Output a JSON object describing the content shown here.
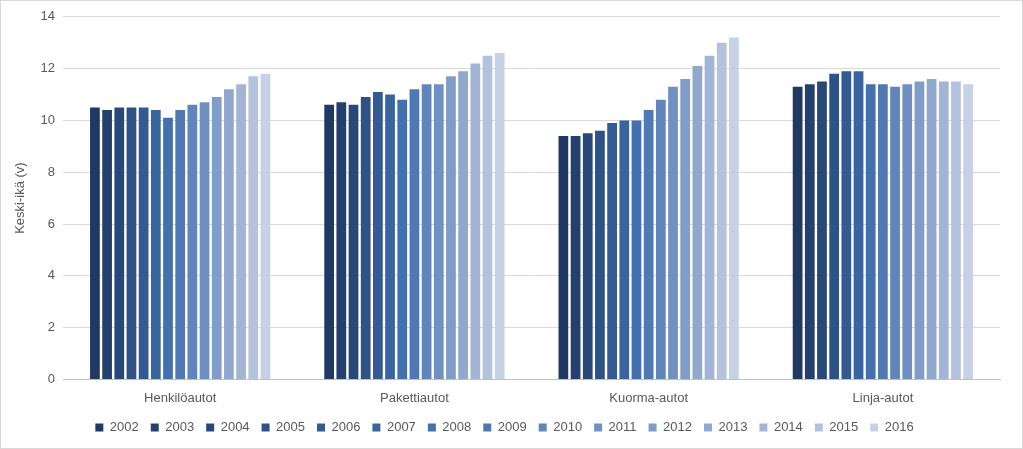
{
  "chart_data": {
    "type": "bar",
    "y_label": "Keski-ikä (v)",
    "categories": [
      "Henkilöautot",
      "Pakettiautot",
      "Kuorma-autot",
      "Linja-autot"
    ],
    "series": [
      {
        "name": "2002",
        "color": "#203864",
        "values": [
          10.5,
          10.6,
          9.4,
          11.3
        ]
      },
      {
        "name": "2003",
        "color": "#24406f",
        "values": [
          10.4,
          10.7,
          9.4,
          11.4
        ]
      },
      {
        "name": "2004",
        "color": "#29487a",
        "values": [
          10.5,
          10.6,
          9.5,
          11.5
        ]
      },
      {
        "name": "2005",
        "color": "#2e5186",
        "values": [
          10.5,
          10.9,
          9.6,
          11.8
        ]
      },
      {
        "name": "2006",
        "color": "#335a92",
        "values": [
          10.5,
          11.1,
          9.9,
          11.9
        ]
      },
      {
        "name": "2007",
        "color": "#3a64a0",
        "values": [
          10.4,
          11.0,
          10.0,
          11.9
        ]
      },
      {
        "name": "2008",
        "color": "#4470ad",
        "values": [
          10.1,
          10.8,
          10.0,
          11.4
        ]
      },
      {
        "name": "2009",
        "color": "#5079b3",
        "values": [
          10.4,
          11.2,
          10.4,
          11.4
        ]
      },
      {
        "name": "2010",
        "color": "#6185bb",
        "values": [
          10.6,
          11.4,
          10.8,
          11.3
        ]
      },
      {
        "name": "2011",
        "color": "#7090c2",
        "values": [
          10.7,
          11.4,
          11.3,
          11.4
        ]
      },
      {
        "name": "2012",
        "color": "#809cc8",
        "values": [
          10.9,
          11.7,
          11.6,
          11.5
        ]
      },
      {
        "name": "2013",
        "color": "#90a8ce",
        "values": [
          11.2,
          11.9,
          12.1,
          11.6
        ]
      },
      {
        "name": "2014",
        "color": "#a2b5d6",
        "values": [
          11.4,
          12.2,
          12.5,
          11.5
        ]
      },
      {
        "name": "2015",
        "color": "#b4c3dd",
        "values": [
          11.7,
          12.5,
          13.0,
          11.5
        ]
      },
      {
        "name": "2016",
        "color": "#c6d1e5",
        "values": [
          11.8,
          12.6,
          13.2,
          11.4
        ]
      }
    ],
    "ylim": [
      0,
      14
    ],
    "yticks": [
      0,
      2,
      4,
      6,
      8,
      10,
      12,
      14
    ],
    "grid": true,
    "legend": "bottom"
  }
}
